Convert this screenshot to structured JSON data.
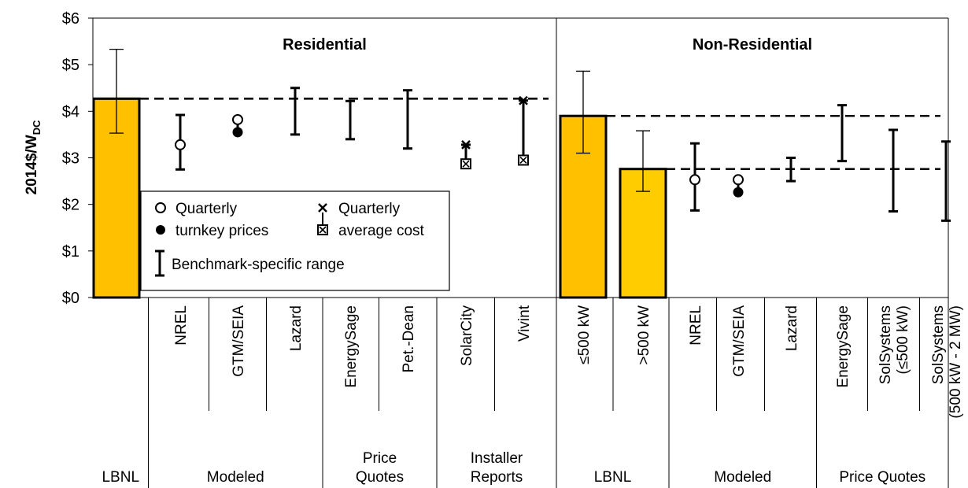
{
  "chart_data": {
    "type": "bar",
    "ylabel_main": "2014$/W",
    "ylabel_sub": "DC",
    "ylim": [
      0,
      6
    ],
    "yticks": [
      "$0",
      "$1",
      "$2",
      "$3",
      "$4",
      "$5",
      "$6"
    ],
    "grid": false,
    "panels": [
      {
        "title": "Residential",
        "categories": [
          "",
          "NREL",
          "GTM/SEIA",
          "Lazard",
          "EnergySage",
          "Pet.-Dean",
          "SolarCity",
          "Vivint"
        ],
        "groups": [
          "LBNL",
          "Modeled",
          "Price Quotes",
          "Installer Reports"
        ],
        "bars": [
          {
            "category": "LBNL",
            "value": 4.27,
            "low": 3.53,
            "high": 5.33
          }
        ],
        "dashed_lines": [
          4.27
        ],
        "ranges": [
          {
            "category": "NREL",
            "low": 2.75,
            "high": 3.92
          },
          {
            "category": "GTM/SEIA",
            "low": 3.55,
            "high": 3.82
          },
          {
            "category": "Lazard",
            "low": 3.5,
            "high": 4.5
          },
          {
            "category": "EnergySage",
            "low": 3.4,
            "high": 4.22
          },
          {
            "category": "Pet.-Dean",
            "low": 3.2,
            "high": 4.45
          },
          {
            "category": "SolarCity",
            "low": 2.87,
            "high": 3.28
          },
          {
            "category": "Vivint",
            "low": 2.95,
            "high": 4.23
          }
        ],
        "price_open": [
          {
            "category": "NREL",
            "value": 3.28
          },
          {
            "category": "GTM/SEIA",
            "value": 3.82
          }
        ],
        "price_filled": [
          {
            "category": "GTM/SEIA",
            "value": 3.55
          }
        ],
        "cost_x": [
          {
            "category": "SolarCity",
            "value": 3.28
          },
          {
            "category": "Vivint",
            "value": 4.23
          }
        ],
        "cost_box": [
          {
            "category": "SolarCity",
            "value": 2.87
          },
          {
            "category": "Vivint",
            "value": 2.95
          }
        ]
      },
      {
        "title": "Non-Residential",
        "categories": [
          "≤500 kW",
          ">500 kW",
          "NREL",
          "GTM/SEIA",
          "Lazard",
          "EnergySage",
          "SolSystems (≤500 kW)",
          "SolSystems (500 kW - 2 MW)"
        ],
        "groups": [
          "LBNL",
          "Modeled",
          "Price Quotes"
        ],
        "bars": [
          {
            "category": "≤500 kW",
            "value": 3.9,
            "low": 3.1,
            "high": 4.86
          },
          {
            "category": ">500 kW",
            "value": 2.76,
            "low": 2.28,
            "high": 3.58
          }
        ],
        "dashed_lines": [
          3.9,
          2.76
        ],
        "ranges": [
          {
            "category": "NREL",
            "low": 1.87,
            "high": 3.31
          },
          {
            "category": "GTM/SEIA",
            "low": 2.26,
            "high": 2.53
          },
          {
            "category": "Lazard",
            "low": 2.5,
            "high": 3.0
          },
          {
            "category": "EnergySage",
            "low": 2.93,
            "high": 4.13
          },
          {
            "category": "SolSystems (≤500 kW)",
            "low": 1.85,
            "high": 3.6
          },
          {
            "category": "SolSystems (500 kW - 2 MW)",
            "low": 1.65,
            "high": 3.35
          }
        ],
        "price_open": [
          {
            "category": "NREL",
            "value": 2.53
          },
          {
            "category": "GTM/SEIA",
            "value": 2.53
          }
        ],
        "price_filled": [
          {
            "category": "GTM/SEIA",
            "value": 2.26
          }
        ],
        "cost_x": [],
        "cost_box": []
      }
    ],
    "legend": {
      "placement": "inside-left",
      "quarterly_prices": [
        "Quarterly",
        "turnkey prices"
      ],
      "quarterly_cost": [
        "Quarterly",
        "average cost"
      ],
      "range": "Benchmark-specific range"
    },
    "colors": {
      "bar_fill": "#FFC000",
      "bar_fill_light": "#FFCC00",
      "stroke": "#000000"
    }
  }
}
